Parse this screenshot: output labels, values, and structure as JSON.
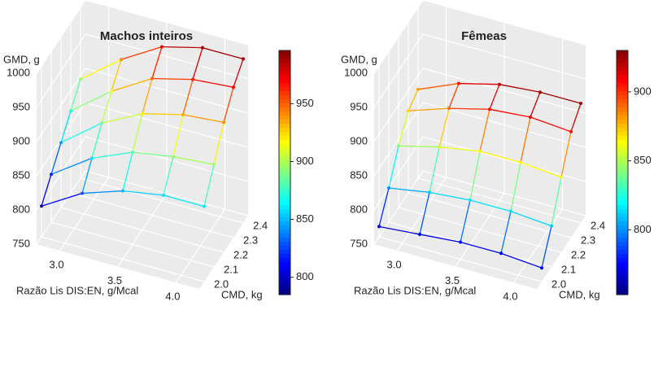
{
  "chart_data": [
    {
      "type": "surface3d",
      "title": "Machos inteiros",
      "zlabel": "GMD, g",
      "xlabel": "Razão Lis DIS:EN, g/Mcal",
      "ylabel": "CMD, kg",
      "x": [
        2.8,
        3.15,
        3.5,
        3.85,
        4.2
      ],
      "y": [
        2.0,
        2.1,
        2.2,
        2.3,
        2.4
      ],
      "z": [
        [
          795,
          820,
          845,
          870,
          895
        ],
        [
          830,
          860,
          890,
          915,
          940
        ],
        [
          850,
          885,
          920,
          950,
          975
        ],
        [
          860,
          895,
          935,
          965,
          990
        ],
        [
          860,
          900,
          940,
          970,
          990
        ]
      ],
      "xlim": [
        2.8,
        4.2
      ],
      "ylim": [
        1.95,
        2.45
      ],
      "zlim": [
        750,
        1000
      ],
      "xticks": [
        {
          "value": 3,
          "label": "3.0"
        },
        3.5,
        {
          "value": 4,
          "label": "4.0"
        }
      ],
      "yticks": [
        {
          "value": 2,
          "label": "2.0"
        },
        2.1,
        2.2,
        2.3,
        2.4
      ],
      "zticks": [
        750,
        800,
        850,
        900,
        950,
        1000
      ],
      "colorlim": [
        785,
        996
      ],
      "colorticks": [
        800,
        850,
        900,
        950
      ],
      "colormap": "jet"
    },
    {
      "type": "surface3d",
      "title": "Fêmeas",
      "zlabel": "GMD, g",
      "xlabel": "Razão Lis DIS:EN, g/Mcal",
      "ylabel": "CMD, kg",
      "x": [
        2.8,
        3.15,
        3.5,
        3.85,
        4.2
      ],
      "y": [
        2.0,
        2.1,
        2.2,
        2.3,
        2.4
      ],
      "z": [
        [
          765,
          800,
          840,
          870,
          880
        ],
        [
          770,
          810,
          855,
          890,
          905
        ],
        [
          775,
          815,
          865,
          905,
          920
        ],
        [
          775,
          815,
          865,
          910,
          925
        ],
        [
          770,
          810,
          860,
          905,
          925
        ]
      ],
      "xlim": [
        2.8,
        4.2
      ],
      "ylim": [
        1.95,
        2.45
      ],
      "zlim": [
        750,
        1000
      ],
      "xticks": [
        {
          "value": 3,
          "label": "3.0"
        },
        3.5,
        {
          "value": 4,
          "label": "4.0"
        }
      ],
      "yticks": [
        {
          "value": 2,
          "label": "2.0"
        },
        2.1,
        2.2,
        2.3,
        2.4
      ],
      "zticks": [
        750,
        800,
        850,
        900,
        950,
        1000
      ],
      "colorlim": [
        753,
        930
      ],
      "colorticks": [
        800,
        850,
        900
      ],
      "colormap": "jet"
    }
  ]
}
